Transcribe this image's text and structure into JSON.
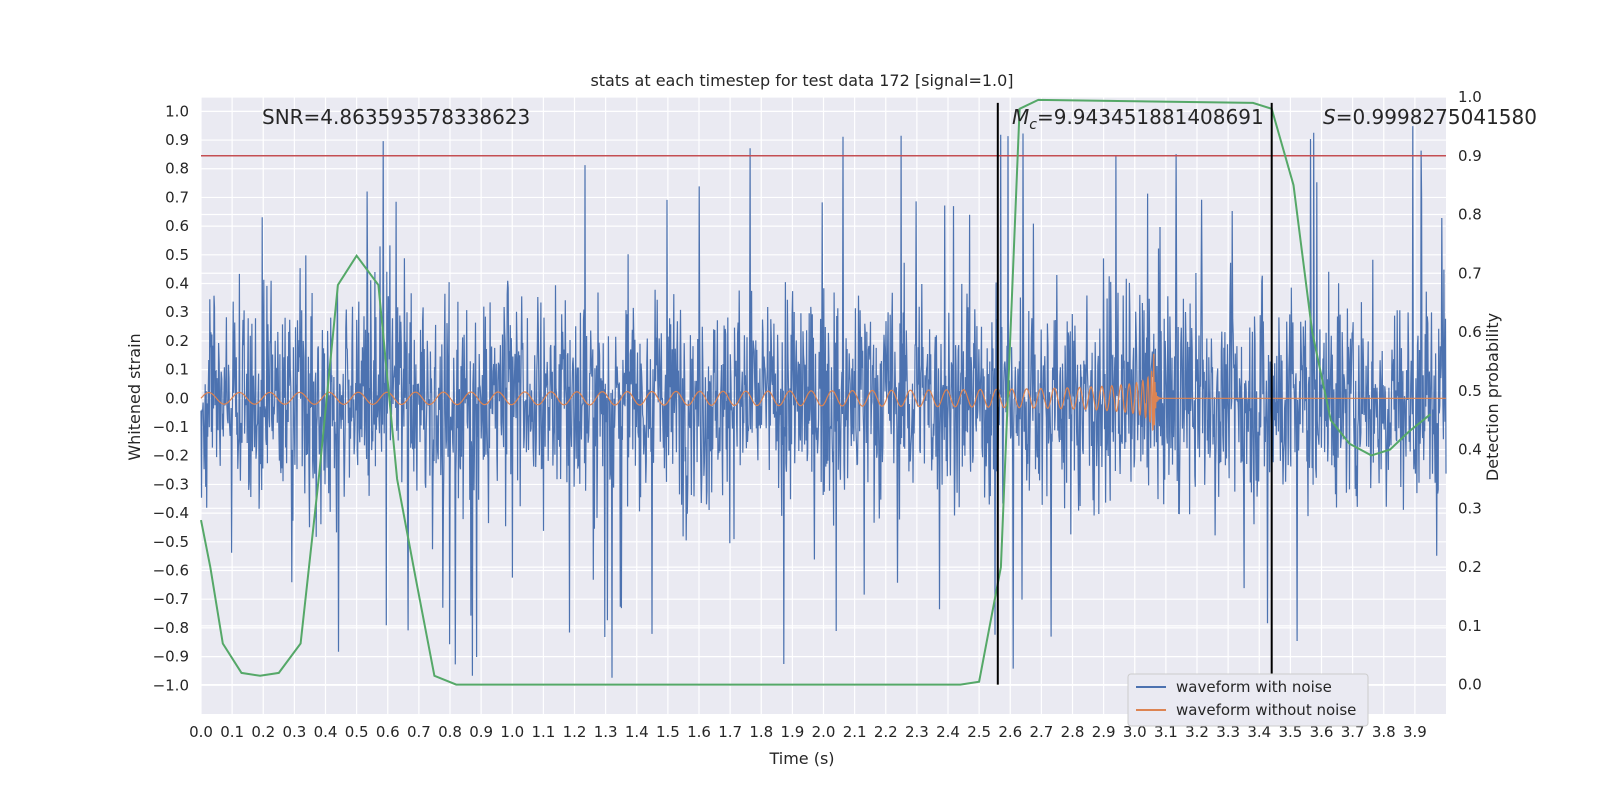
{
  "chart_data": {
    "type": "line",
    "title": "stats at each timestep for test data 172 [signal=1.0]",
    "xlabel": "Time (s)",
    "ylabel": "Whitened strain",
    "y2label": "Detection probability",
    "xlim": [
      0.0,
      4.0
    ],
    "ylim": [
      -1.1,
      1.05
    ],
    "y2lim": [
      -0.05,
      1.0
    ],
    "x_ticks": [
      0.0,
      0.1,
      0.2,
      0.3,
      0.4,
      0.5,
      0.6,
      0.7,
      0.8,
      0.9,
      1.0,
      1.1,
      1.2,
      1.3,
      1.4,
      1.5,
      1.6,
      1.7,
      1.8,
      1.9,
      2.0,
      2.1,
      2.2,
      2.3,
      2.4,
      2.5,
      2.6,
      2.7,
      2.8,
      2.9,
      3.0,
      3.1,
      3.2,
      3.3,
      3.4,
      3.5,
      3.6,
      3.7,
      3.8,
      3.9
    ],
    "x_tick_labels": [
      "0.0",
      "0.1",
      "0.2",
      "0.3",
      "0.4",
      "0.5",
      "0.6",
      "0.7",
      "0.8",
      "0.9",
      "1.0",
      "1.1",
      "1.2",
      "1.3",
      "1.4",
      "1.5",
      "1.6",
      "1.7",
      "1.8",
      "1.9",
      "2.0",
      "2.1",
      "2.2",
      "2.3",
      "2.4",
      "2.5",
      "2.6",
      "2.7",
      "2.8",
      "2.9",
      "3.0",
      "3.1",
      "3.2",
      "3.3",
      "3.4",
      "3.5",
      "3.6",
      "3.7",
      "3.8",
      "3.9"
    ],
    "y_ticks": [
      1.0,
      0.9,
      0.8,
      0.7,
      0.6,
      0.5,
      0.4,
      0.3,
      0.2,
      0.1,
      0.0,
      -0.1,
      -0.2,
      -0.3,
      -0.4,
      -0.5,
      -0.6,
      -0.7,
      -0.8,
      -0.9,
      -1.0
    ],
    "y_tick_labels": [
      "1.0",
      "0.9",
      "0.8",
      "0.7",
      "0.6",
      "0.5",
      "0.4",
      "0.3",
      "0.2",
      "0.1",
      "0.0",
      "−0.1",
      "−0.2",
      "−0.3",
      "−0.4",
      "−0.5",
      "−0.6",
      "−0.7",
      "−0.8",
      "−0.9",
      "−1.0"
    ],
    "y2_ticks": [
      1.0,
      0.9,
      0.8,
      0.7,
      0.6,
      0.5,
      0.4,
      0.3,
      0.2,
      0.1,
      0.0
    ],
    "y2_tick_labels": [
      "1.0",
      "0.9",
      "0.8",
      "0.7",
      "0.6",
      "0.5",
      "0.4",
      "0.3",
      "0.2",
      "0.1",
      "0.0"
    ],
    "grid": true,
    "legend_position": "bottom-right",
    "series": [
      {
        "name": "waveform with noise",
        "color": "#4c72b0",
        "axis": "left",
        "kind": "noise",
        "amplitude_typical": 0.35,
        "peak_max": 0.97,
        "peak_min": -0.98
      },
      {
        "name": "waveform without noise",
        "color": "#dd8452",
        "axis": "left",
        "kind": "chirp",
        "amplitude_start": 0.02,
        "amplitude_peak": 0.21,
        "merger_time": 3.06
      },
      {
        "axis": "right",
        "color": "#55a868",
        "x": [
          0.0,
          0.03,
          0.07,
          0.13,
          0.19,
          0.25,
          0.32,
          0.38,
          0.44,
          0.5,
          0.57,
          0.63,
          0.69,
          0.75,
          0.82,
          0.88,
          0.94,
          1.0,
          2.44,
          2.5,
          2.57,
          2.63,
          2.69,
          3.38,
          3.44,
          3.51,
          3.57,
          3.63,
          3.69,
          3.76,
          3.82,
          3.88,
          3.95
        ],
        "values": [
          0.28,
          0.2,
          0.07,
          0.02,
          0.015,
          0.02,
          0.07,
          0.36,
          0.68,
          0.73,
          0.68,
          0.35,
          0.18,
          0.015,
          0.0,
          0.0,
          0.0,
          0.0,
          0.0,
          0.005,
          0.2,
          0.98,
          0.995,
          0.99,
          0.98,
          0.85,
          0.6,
          0.45,
          0.41,
          0.39,
          0.4,
          0.43,
          0.46
        ]
      }
    ],
    "threshold": {
      "value": 0.9,
      "axis": "right",
      "color": "#c44e52"
    },
    "vlines": [
      {
        "x": 2.56,
        "color": "#000000"
      },
      {
        "x": 3.44,
        "color": "#000000"
      }
    ]
  },
  "annotations": {
    "snr": "SNR=4.863593578338623",
    "mc_symbol": "M",
    "mc_subscript": "c",
    "mc_value": "=9.943451881408691",
    "s_symbol": "S",
    "s_value": "=0.9998275041580"
  },
  "legend": [
    {
      "label": "waveform with noise",
      "color": "#4c72b0"
    },
    {
      "label": "waveform without noise",
      "color": "#dd8452"
    }
  ],
  "colors": {
    "background": "#eaeaf2",
    "grid": "#ffffff",
    "text": "#262626"
  }
}
